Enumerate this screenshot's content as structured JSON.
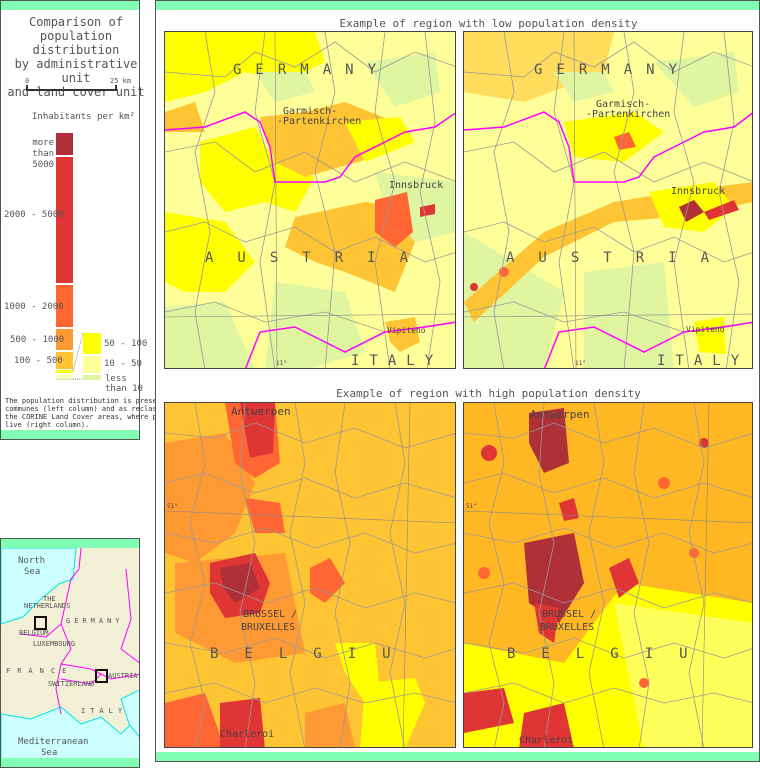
{
  "legend": {
    "title_lines": [
      "Comparison of",
      "population distribution",
      "by administrative unit",
      "and land cover unit"
    ],
    "scale": {
      "start": "0",
      "end": "25 km"
    },
    "unit_label": "Inhabitants per km²",
    "classes": [
      {
        "label": "more than 5000",
        "color": "#b03038"
      },
      {
        "label": "2000 - 5000",
        "color": "#e03535"
      },
      {
        "label": "1000 - 2000",
        "color": "#ff6633"
      },
      {
        "label": "500 - 1000",
        "color": "#ff9933"
      },
      {
        "label": "100 - 500",
        "color": "#ffc433"
      },
      {
        "label": "50 - 100",
        "color": "#ffff00"
      },
      {
        "label": "10 - 50",
        "color": "#ffff99"
      },
      {
        "label": "less than 10",
        "color": "#e0f5a0"
      }
    ],
    "note": "The population distribution is presented by communes (left column) and as reclassified to the CORINE Land Cover areas, where people live (right column)."
  },
  "inset": {
    "labels": [
      "North",
      "Sea",
      "THE",
      "NETHERLANDS",
      "GERMANY",
      "BELGIUM",
      "LUXEMBOURG",
      "FRANCE",
      "AUSTRIA",
      "SWITZERLAND",
      "ITALY",
      "Mediterranean",
      "Sea"
    ],
    "colors": {
      "land": "#f3f0d8",
      "sea": "#ccffff",
      "coast": "#00e5ee",
      "border": "#ff00ff"
    }
  },
  "low": {
    "title": "Example of region with low population density",
    "labels": {
      "germany": "GERMANY",
      "austria": "AUSTRIA",
      "italy": "ITALY",
      "garmisch1": "Garmisch-",
      "garmisch2": "-Partenkirchen",
      "innsbruck": "Innsbruck",
      "vipiteno": "Vipiteno",
      "lon": "11°"
    }
  },
  "high": {
    "title": "Example of region with high population density",
    "labels": {
      "belgium": "BELGIU",
      "antwerpen": "Antwerpen",
      "brussel1": "BRUSSEL /",
      "brussel2": "BRUXELLES",
      "charleroi": "Charleroi",
      "lat": "51°"
    }
  }
}
